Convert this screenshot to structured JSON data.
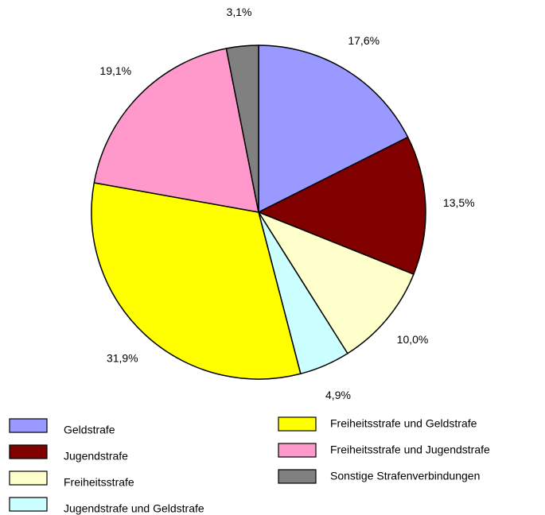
{
  "chart_data": {
    "type": "pie",
    "categories": [
      "Geldstrafe",
      "Jugendstrafe",
      "Freiheitsstrafe",
      "Jugendstrafe und Geldstrafe",
      "Freiheitsstrafe und Geldstrafe",
      "Freiheitsstrafe und Jugendstrafe",
      "Sonstige Strafenverbindungen"
    ],
    "values": [
      17.6,
      13.5,
      10.0,
      4.9,
      31.9,
      19.1,
      3.1
    ],
    "value_labels": [
      "17,6%",
      "13,5%",
      "10,0%",
      "4,9%",
      "31,9%",
      "19,1%",
      "3,1%"
    ],
    "colors": [
      "#9999ff",
      "#800000",
      "#ffffcc",
      "#ccffff",
      "#ffff00",
      "#ff99cc",
      "#808080"
    ]
  }
}
